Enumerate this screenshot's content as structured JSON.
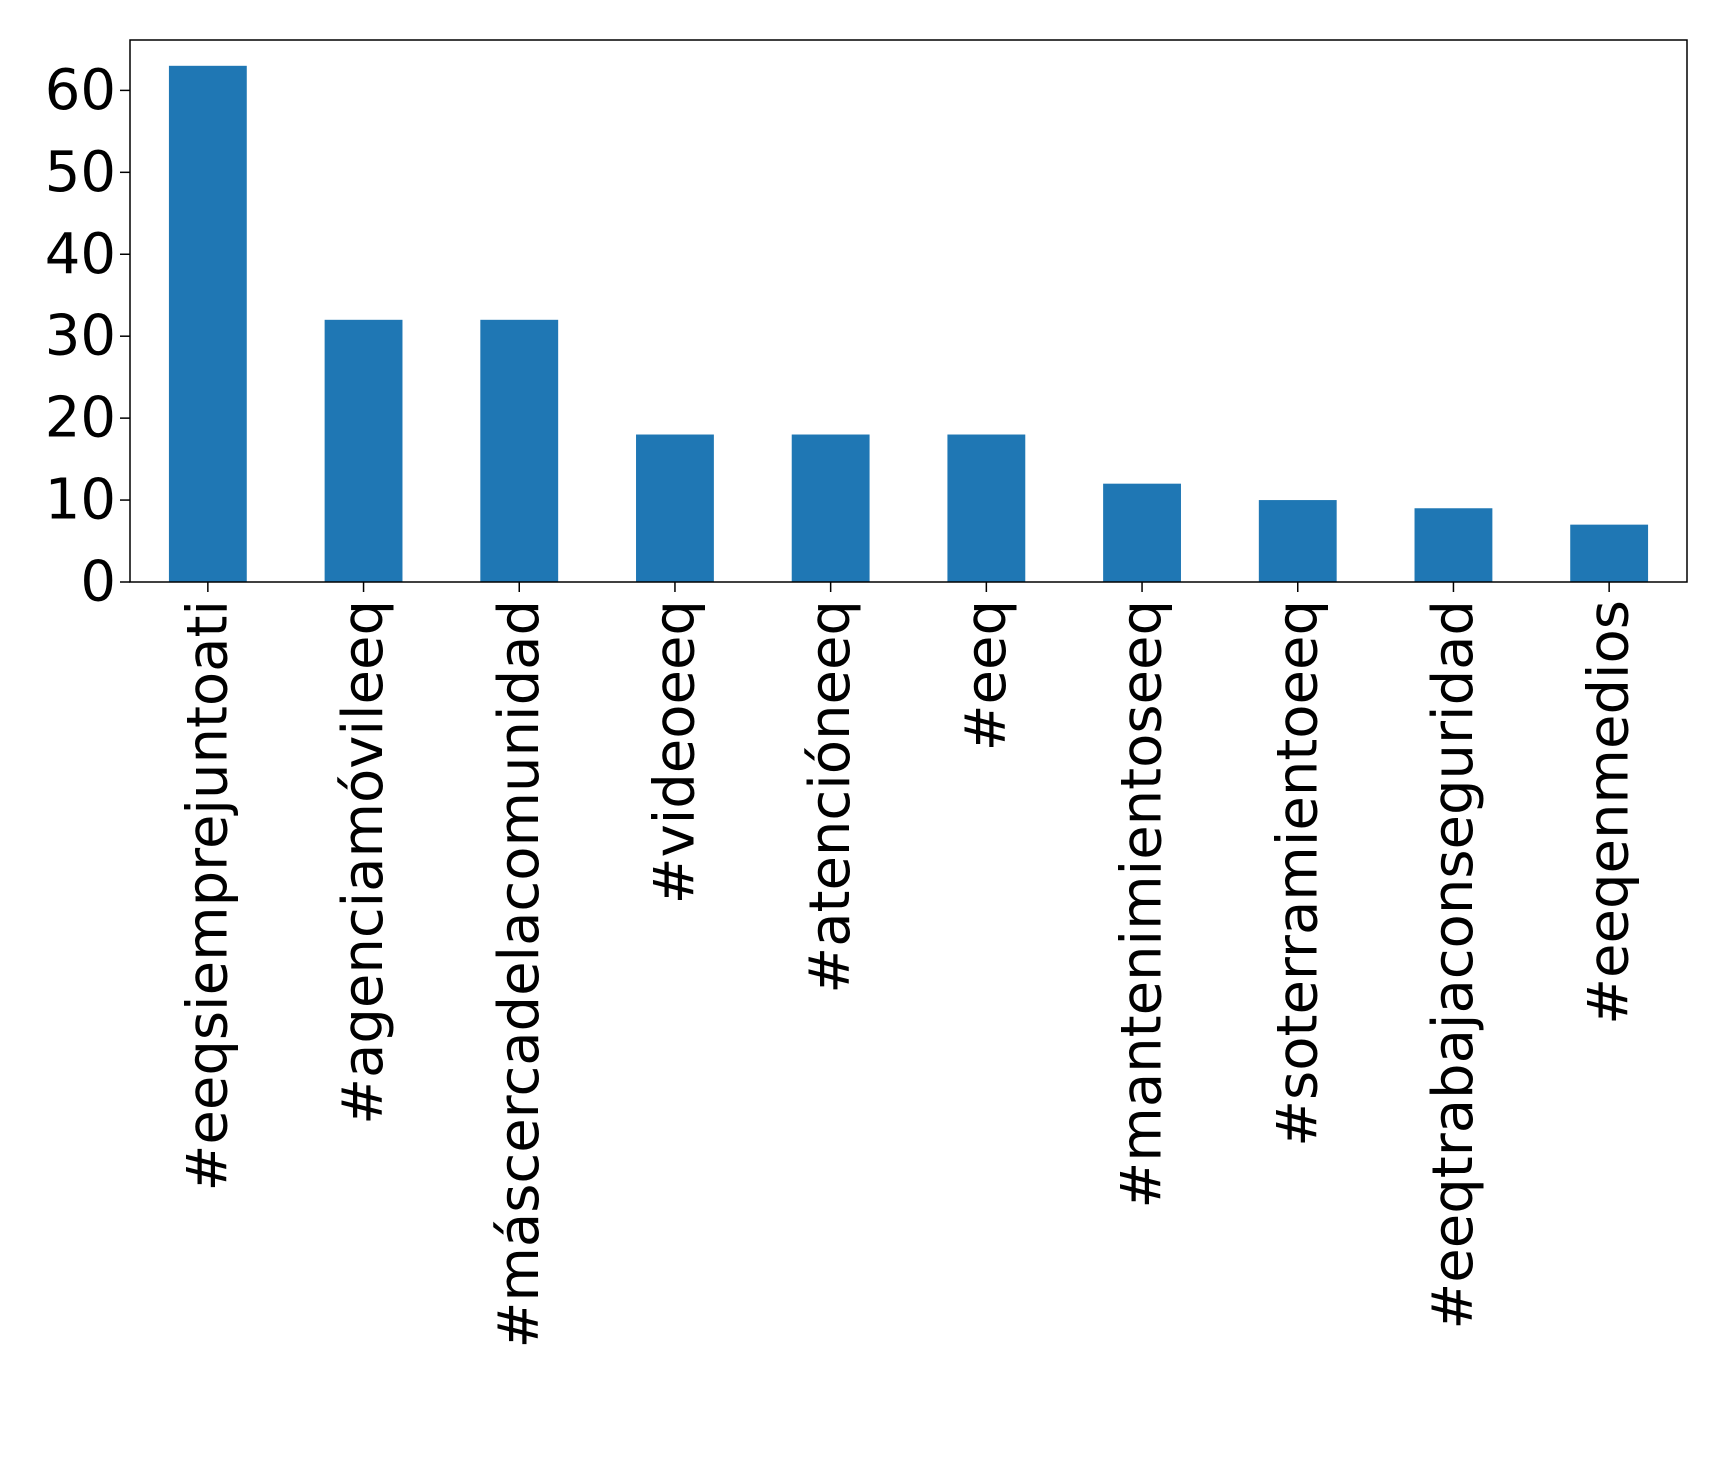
{
  "chart_data": {
    "type": "bar",
    "title": "",
    "xlabel": "",
    "ylabel": "",
    "categories": [
      "#eeqsiemprejuntoati",
      "#agenciamóvileeq",
      "#máscercadelacomunidad",
      "#videoeeq",
      "#atencióneeq",
      "#eeq",
      "#mantenimientoseeq",
      "#soterramientoeeq",
      "#eeqtrabajaconseguridad",
      "#eeqenmedios"
    ],
    "values": [
      63,
      32,
      32,
      18,
      18,
      18,
      12,
      10,
      9,
      7
    ],
    "ylim": [
      0,
      66.15
    ],
    "yticks": [
      0,
      10,
      20,
      30,
      40,
      50,
      60
    ],
    "ytick_labels": [
      "0",
      "10",
      "20",
      "30",
      "40",
      "50",
      "60"
    ],
    "grid": false,
    "legend": "none",
    "bar_color": "#1f77b4"
  }
}
